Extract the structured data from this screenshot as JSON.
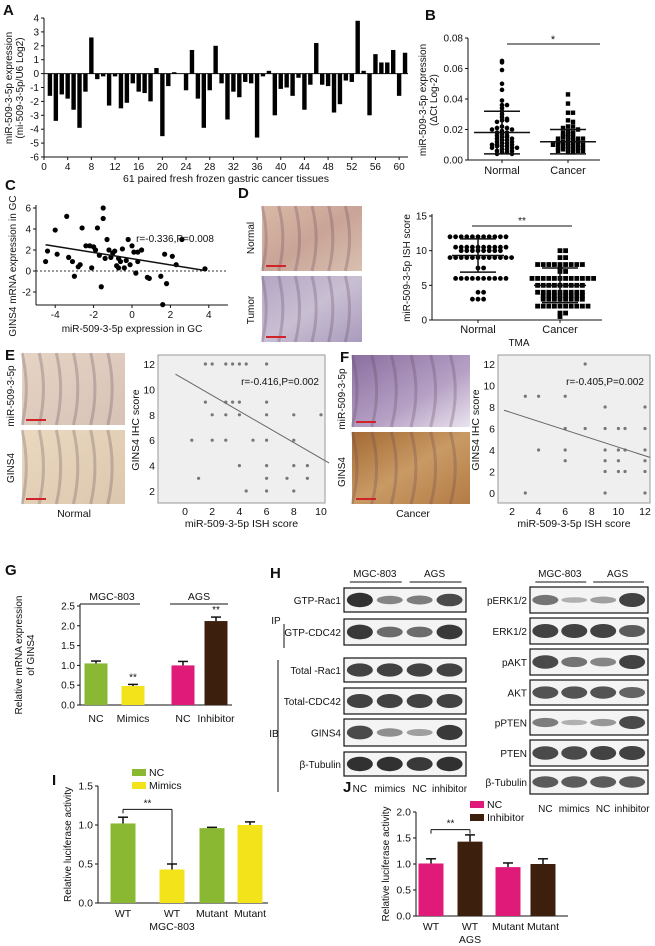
{
  "panel_letters": [
    "A",
    "B",
    "C",
    "D",
    "E",
    "F",
    "G",
    "H",
    "I",
    "J"
  ],
  "colors": {
    "nc_green": "#8ab833",
    "mimics_yellow": "#f2e31b",
    "nc_pink": "#df1a78",
    "inhibitor_brown": "#3d1f0e",
    "scale_bar": "#d0232a"
  },
  "micrographs": {
    "D": {
      "normal": "Normal",
      "tumor": "Tumor"
    },
    "E": {
      "top": "miR-509-3-5p",
      "bottom": "GINS4",
      "caption": "Normal"
    },
    "F": {
      "top": "miR-509-3-5p",
      "bottom": "GINS4",
      "caption": "Cancer"
    }
  },
  "western_blots": {
    "group_labels": [
      "MGC-803",
      "AGS"
    ],
    "lane_labels": [
      "NC",
      "mimics",
      "NC",
      "inhibitor"
    ],
    "ip_label": "IP",
    "ib_label": "IB",
    "left": [
      {
        "label": "GTP-Rac1",
        "bands": [
          0.95,
          0.45,
          0.5,
          0.8
        ]
      },
      {
        "label": "GTP-CDC42",
        "bands": [
          0.9,
          0.6,
          0.6,
          0.9
        ]
      },
      {
        "label": "Total -Rac1",
        "bands": [
          0.85,
          0.85,
          0.85,
          0.85
        ]
      },
      {
        "label": "Total-CDC42",
        "bands": [
          0.85,
          0.85,
          0.85,
          0.85
        ]
      },
      {
        "label": "GINS4",
        "bands": [
          0.8,
          0.4,
          0.3,
          0.9
        ]
      },
      {
        "label": "β-Tubulin",
        "bands": [
          0.95,
          0.95,
          0.9,
          0.95
        ]
      }
    ],
    "right": [
      {
        "label": "pERK1/2",
        "bands": [
          0.55,
          0.2,
          0.3,
          0.85
        ]
      },
      {
        "label": "ERK1/2",
        "bands": [
          0.85,
          0.85,
          0.85,
          0.7
        ]
      },
      {
        "label": "pAKT",
        "bands": [
          0.8,
          0.55,
          0.45,
          0.85
        ]
      },
      {
        "label": "AKT",
        "bands": [
          0.75,
          0.75,
          0.75,
          0.65
        ]
      },
      {
        "label": "pPTEN",
        "bands": [
          0.5,
          0.2,
          0.35,
          0.8
        ]
      },
      {
        "label": "PTEN",
        "bands": [
          0.8,
          0.8,
          0.85,
          0.85
        ]
      },
      {
        "label": "β-Tubulin",
        "bands": [
          0.7,
          0.7,
          0.7,
          0.7
        ]
      }
    ]
  },
  "chart_data": [
    {
      "panel": "A",
      "type": "bar",
      "xlabel": "61 paired fresh frozen gastric cancer tissues",
      "ylabel": [
        "miR-509-3-5p expression",
        "(mi-509-3-5p/U6 Log2)"
      ],
      "ylim": [
        -6,
        4
      ],
      "yticks": [
        "4",
        "3",
        "2",
        "1",
        "0",
        "-1",
        "-2",
        "-3",
        "-4",
        "-5",
        "-6"
      ],
      "xticks": [
        "0",
        "4",
        "8",
        "12",
        "16",
        "20",
        "24",
        "28",
        "32",
        "36",
        "40",
        "44",
        "48",
        "52",
        "56",
        "60"
      ],
      "values": [
        -1.6,
        -3.4,
        -1.5,
        -1.8,
        -2.6,
        -3.9,
        -1.3,
        2.6,
        -0.4,
        -0.2,
        -2.3,
        -0.2,
        -2.5,
        -2.1,
        -0.7,
        -1.3,
        -1.4,
        -2.0,
        0.4,
        -4.5,
        -0.9,
        0.1,
        0.0,
        -1.2,
        1.7,
        -1.8,
        -3.9,
        -1.2,
        2.0,
        -0.7,
        -3.3,
        -1.3,
        -1.7,
        -0.6,
        -0.7,
        -4.6,
        -0.2,
        0.2,
        -3.0,
        -1.1,
        -1.0,
        -1.6,
        -0.3,
        -2.6,
        -0.8,
        2.2,
        -0.8,
        -0.9,
        -2.8,
        -2.2,
        -0.5,
        -0.6,
        3.8,
        0.2,
        -3.0,
        1.4,
        0.8,
        0.8,
        1.7,
        -1.6,
        1.5
      ]
    },
    {
      "panel": "B",
      "type": "scatter",
      "ylabel": [
        "miR-509-3-5p expression",
        "(ΔCt Log-2)"
      ],
      "ylim": [
        0,
        0.08
      ],
      "yticks": [
        "0.00",
        "0.02",
        "0.04",
        "0.06",
        "0.08"
      ],
      "categories": [
        "Normal",
        "Cancer"
      ],
      "significance": "*",
      "series": [
        {
          "name": "Normal",
          "mean": 0.018,
          "sd": 0.014,
          "values": [
            0.065,
            0.064,
            0.059,
            0.05,
            0.046,
            0.039,
            0.036,
            0.036,
            0.034,
            0.032,
            0.03,
            0.028,
            0.027,
            0.026,
            0.026,
            0.025,
            0.022,
            0.021,
            0.021,
            0.02,
            0.02,
            0.019,
            0.018,
            0.018,
            0.017,
            0.016,
            0.016,
            0.015,
            0.015,
            0.014,
            0.014,
            0.013,
            0.013,
            0.012,
            0.012,
            0.011,
            0.011,
            0.01,
            0.01,
            0.01,
            0.009,
            0.009,
            0.009,
            0.008,
            0.008,
            0.008,
            0.007,
            0.007,
            0.006,
            0.006,
            0.005,
            0.005,
            0.004,
            0.004
          ]
        },
        {
          "name": "Cancer",
          "mean": 0.012,
          "sd": 0.008,
          "values": [
            0.043,
            0.037,
            0.031,
            0.031,
            0.026,
            0.025,
            0.022,
            0.022,
            0.021,
            0.02,
            0.019,
            0.018,
            0.018,
            0.017,
            0.017,
            0.016,
            0.015,
            0.015,
            0.015,
            0.014,
            0.014,
            0.014,
            0.013,
            0.013,
            0.012,
            0.012,
            0.012,
            0.011,
            0.011,
            0.011,
            0.01,
            0.01,
            0.01,
            0.01,
            0.009,
            0.009,
            0.009,
            0.008,
            0.008,
            0.008,
            0.007,
            0.007,
            0.007,
            0.006,
            0.006,
            0.006,
            0.005,
            0.005
          ]
        }
      ]
    },
    {
      "panel": "C",
      "type": "scatter",
      "xlabel": "miR-509-3-5p expression in GC",
      "ylabel": "GINS4 mRNA expression in GC",
      "annotation": "r=-0.336,P=0.008",
      "xlim": [
        -5,
        5
      ],
      "ylim": [
        -3.3,
        6.3
      ],
      "xticks": [
        "-4",
        "-2",
        "0",
        "2",
        "4"
      ],
      "yticks": [
        "6",
        "4",
        "2",
        "0",
        "-2"
      ],
      "fit": [
        [
          -4.5,
          2.5
        ],
        [
          3.8,
          0.05
        ]
      ],
      "points": [
        [
          -4.5,
          0.9
        ],
        [
          -4.4,
          1.9
        ],
        [
          -4,
          3.9
        ],
        [
          -3.9,
          1.6
        ],
        [
          -3.4,
          5.2
        ],
        [
          -3.3,
          1.3
        ],
        [
          -3.1,
          0.9
        ],
        [
          -3,
          -0.5
        ],
        [
          -2.8,
          0.4
        ],
        [
          -2.7,
          0.6
        ],
        [
          -2.6,
          4.1
        ],
        [
          -2.4,
          2.4
        ],
        [
          -2.2,
          2.4
        ],
        [
          -2.1,
          0.3
        ],
        [
          -2.0,
          2.3
        ],
        [
          -1.9,
          2.0
        ],
        [
          -1.8,
          4.1
        ],
        [
          -1.7,
          1.5
        ],
        [
          -1.6,
          -1.5
        ],
        [
          -1.5,
          6.0
        ],
        [
          -1.5,
          5.0
        ],
        [
          -1.4,
          1.2
        ],
        [
          -1.3,
          3.0
        ],
        [
          -1.2,
          2.0
        ],
        [
          -1.1,
          1.3
        ],
        [
          -1.0,
          1.7
        ],
        [
          -0.9,
          1.9
        ],
        [
          -0.8,
          0.5
        ],
        [
          -0.7,
          0.3
        ],
        [
          -0.7,
          1.2
        ],
        [
          -0.6,
          0.9
        ],
        [
          -0.5,
          2.1
        ],
        [
          -0.4,
          0.3
        ],
        [
          -0.3,
          1.0
        ],
        [
          -0.2,
          3.0
        ],
        [
          -0.1,
          0.6
        ],
        [
          0,
          2.4
        ],
        [
          0.1,
          1.8
        ],
        [
          0.3,
          1.8
        ],
        [
          0.2,
          -0.2
        ],
        [
          0.5,
          2.0
        ],
        [
          0.3,
          0.9
        ],
        [
          0.8,
          -0.6
        ],
        [
          0.9,
          -0.7
        ],
        [
          1.5,
          -0.5
        ],
        [
          1.6,
          -3.2
        ],
        [
          1.7,
          1.6
        ],
        [
          1.8,
          -1.2
        ],
        [
          2.1,
          1.4
        ],
        [
          2.3,
          0.6
        ],
        [
          2.6,
          3.0
        ],
        [
          3.8,
          0.2
        ]
      ]
    },
    {
      "panel": "D",
      "type": "scatter",
      "ylabel": "miR-509-3-5p ISH score",
      "xlabel": "TMA",
      "ylim": [
        0,
        15
      ],
      "yticks": [
        "0",
        "5",
        "10",
        "15"
      ],
      "categories": [
        "Normal",
        "Cancer"
      ],
      "significance": "**",
      "series": [
        {
          "name": "Normal",
          "mean": 9.3,
          "sd": 2.4,
          "value_counts": [
            [
              12,
              11
            ],
            [
              10.5,
              10
            ],
            [
              10,
              8
            ],
            [
              9,
              12
            ],
            [
              7.5,
              2
            ],
            [
              6,
              10
            ],
            [
              4,
              2
            ],
            [
              3,
              3
            ]
          ]
        },
        {
          "name": "Cancer",
          "mean": 5.0,
          "sd": 2.5,
          "value_counts": [
            [
              10,
              2
            ],
            [
              9,
              2
            ],
            [
              8,
              9
            ],
            [
              7.5,
              1
            ],
            [
              7,
              2
            ],
            [
              6,
              12
            ],
            [
              5,
              9
            ],
            [
              4,
              9
            ],
            [
              3.5,
              8
            ],
            [
              3,
              8
            ],
            [
              2,
              10
            ],
            [
              1,
              2
            ],
            [
              0.5,
              1
            ]
          ]
        }
      ]
    },
    {
      "panel": "E",
      "type": "scatter",
      "xlabel": "miR-509-3-5p ISH score",
      "ylabel": "GINS4 IHC score",
      "annotation": "r=-0.416,P=0.002",
      "xticks": [
        "0",
        "2",
        "4",
        "6",
        "8",
        "10"
      ],
      "yticks": [
        "2",
        "4",
        "6",
        "8",
        "10",
        "12"
      ],
      "fit": [
        [
          -0.7,
          11.2
        ],
        [
          10.6,
          4.2
        ]
      ],
      "points": [
        [
          1.5,
          12
        ],
        [
          2,
          12
        ],
        [
          3,
          12
        ],
        [
          3.5,
          12
        ],
        [
          4,
          12
        ],
        [
          4.5,
          12
        ],
        [
          6,
          12
        ],
        [
          1.5,
          9
        ],
        [
          3,
          9
        ],
        [
          3.5,
          9
        ],
        [
          4,
          9
        ],
        [
          6,
          9
        ],
        [
          2,
          8
        ],
        [
          3,
          8
        ],
        [
          4,
          8
        ],
        [
          6,
          8
        ],
        [
          8,
          8
        ],
        [
          10,
          8
        ],
        [
          0.5,
          6
        ],
        [
          2,
          6
        ],
        [
          3,
          6
        ],
        [
          5,
          6
        ],
        [
          6,
          6
        ],
        [
          8,
          6
        ],
        [
          4,
          4
        ],
        [
          6,
          4
        ],
        [
          8,
          4
        ],
        [
          9,
          4
        ],
        [
          1,
          3
        ],
        [
          6,
          3
        ],
        [
          7.5,
          3
        ],
        [
          9,
          3
        ],
        [
          4.5,
          2
        ],
        [
          6,
          2
        ],
        [
          8,
          2
        ]
      ]
    },
    {
      "panel": "F",
      "type": "scatter",
      "xlabel": "miR-509-3-5p ISH score",
      "ylabel": "GINS4 IHC score",
      "annotation": "r=-0.405,P=0.002",
      "xticks": [
        "2",
        "4",
        "6",
        "8",
        "10",
        "12"
      ],
      "yticks": [
        "0",
        "2",
        "4",
        "6",
        "8",
        "10",
        "12"
      ],
      "fit": [
        [
          1.4,
          7.7
        ],
        [
          12.4,
          3.3
        ]
      ],
      "points": [
        [
          7.5,
          12
        ],
        [
          3,
          9
        ],
        [
          4,
          9
        ],
        [
          6,
          9
        ],
        [
          9,
          8
        ],
        [
          12,
          8
        ],
        [
          6,
          6
        ],
        [
          7.5,
          6
        ],
        [
          9,
          6
        ],
        [
          10,
          6
        ],
        [
          10.5,
          6
        ],
        [
          12,
          6
        ],
        [
          4,
          4
        ],
        [
          6,
          4
        ],
        [
          9,
          4
        ],
        [
          10,
          4
        ],
        [
          10.5,
          4
        ],
        [
          12,
          4
        ],
        [
          6,
          3
        ],
        [
          9,
          3
        ],
        [
          10,
          3
        ],
        [
          12,
          3
        ],
        [
          9,
          2
        ],
        [
          10,
          2
        ],
        [
          10.5,
          2
        ],
        [
          12,
          2
        ],
        [
          3,
          0
        ],
        [
          9,
          0
        ],
        [
          12,
          0
        ]
      ]
    },
    {
      "panel": "G",
      "type": "bar",
      "ylabel": [
        "Relative mRNA expression",
        "of GINS4"
      ],
      "ylim": [
        0,
        2.5
      ],
      "yticks": [
        "0.0",
        "0.5",
        "1.0",
        "1.5",
        "2.0",
        "2.5"
      ],
      "groups": [
        "MGC-803",
        "AGS"
      ],
      "categories": [
        "NC",
        "Mimics",
        "NC",
        "Inhibitor"
      ],
      "values": [
        1.05,
        0.48,
        1.0,
        2.12
      ],
      "errors": [
        0.06,
        0.04,
        0.1,
        0.1
      ],
      "significance": [
        "",
        "**",
        "",
        "**"
      ]
    },
    {
      "panel": "I",
      "type": "bar",
      "ylabel": "Relative luciferase activity",
      "xlabel": "MGC-803",
      "ylim": [
        0,
        1.5
      ],
      "yticks": [
        "0.0",
        "0.5",
        "1.0",
        "1.5"
      ],
      "legend": [
        "NC",
        "Mimics"
      ],
      "categories": [
        "WT",
        "WT",
        "Mutant",
        "Mutant"
      ],
      "values": [
        1.02,
        0.43,
        0.96,
        1.0
      ],
      "errors": [
        0.08,
        0.07,
        0.01,
        0.04
      ],
      "significance": "**"
    },
    {
      "panel": "J",
      "type": "bar",
      "ylabel": "Relative luciferase activity",
      "xlabel": "AGS",
      "ylim": [
        0,
        2.0
      ],
      "yticks": [
        "0.0",
        "0.5",
        "1.0",
        "1.5",
        "2.0"
      ],
      "legend": [
        "NC",
        "Inhibitor"
      ],
      "categories": [
        "WT",
        "WT",
        "Mutant",
        "Mutant"
      ],
      "values": [
        1.01,
        1.43,
        0.94,
        1.0
      ],
      "errors": [
        0.09,
        0.13,
        0.08,
        0.1
      ],
      "significance": "**"
    }
  ]
}
